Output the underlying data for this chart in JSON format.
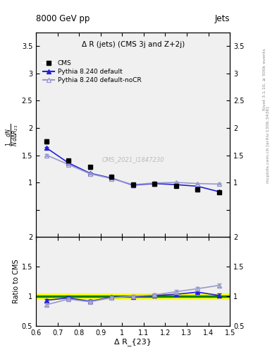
{
  "title_top": "8000 GeV pp",
  "title_right": "Jets",
  "plot_title": "Δ R (jets) (CMS 3j and Z+2j)",
  "watermark": "CMS_2021_I1847230",
  "right_label_top": "Rivet 3.1.10, ≥ 500k events",
  "right_label_bot": "mcplots.cern.ch [arXiv:1306.3436]",
  "xlabel": "Δ R_{23}",
  "ylabel_main": "$\\frac{1}{N}\\frac{dN}{d\\Delta R_{23}}$",
  "ylabel_ratio": "Ratio to CMS",
  "cms_x": [
    0.65,
    0.75,
    0.85,
    0.95,
    1.05,
    1.15,
    1.25,
    1.35,
    1.45
  ],
  "cms_y": [
    1.75,
    1.4,
    1.28,
    1.1,
    0.96,
    0.97,
    0.93,
    0.87,
    0.82
  ],
  "cms_yerr": [
    0.04,
    0.03,
    0.03,
    0.02,
    0.02,
    0.02,
    0.02,
    0.02,
    0.02
  ],
  "py_default_x": [
    0.65,
    0.75,
    0.85,
    0.95,
    1.05,
    1.15,
    1.25,
    1.35,
    1.45
  ],
  "py_default_y": [
    1.63,
    1.36,
    1.17,
    1.08,
    0.95,
    0.98,
    0.96,
    0.93,
    0.83
  ],
  "py_default_yerr": [
    0.015,
    0.015,
    0.015,
    0.012,
    0.012,
    0.012,
    0.012,
    0.012,
    0.012
  ],
  "py_nocr_x": [
    0.65,
    0.75,
    0.85,
    0.95,
    1.05,
    1.15,
    1.25,
    1.35,
    1.45
  ],
  "py_nocr_y": [
    1.5,
    1.33,
    1.16,
    1.07,
    0.96,
    0.99,
    1.0,
    0.98,
    0.97
  ],
  "py_nocr_yerr": [
    0.015,
    0.015,
    0.015,
    0.012,
    0.012,
    0.012,
    0.012,
    0.012,
    0.012
  ],
  "cms_color": "black",
  "py_default_color": "#2222dd",
  "py_nocr_color": "#9999cc",
  "ylim_main": [
    0.0,
    3.75
  ],
  "ylim_ratio": [
    0.5,
    2.0
  ],
  "xlim": [
    0.6,
    1.5
  ],
  "band_yellow": [
    0.95,
    1.05
  ],
  "band_green": [
    0.99,
    1.01
  ],
  "bg_color": "#f0f0f0"
}
